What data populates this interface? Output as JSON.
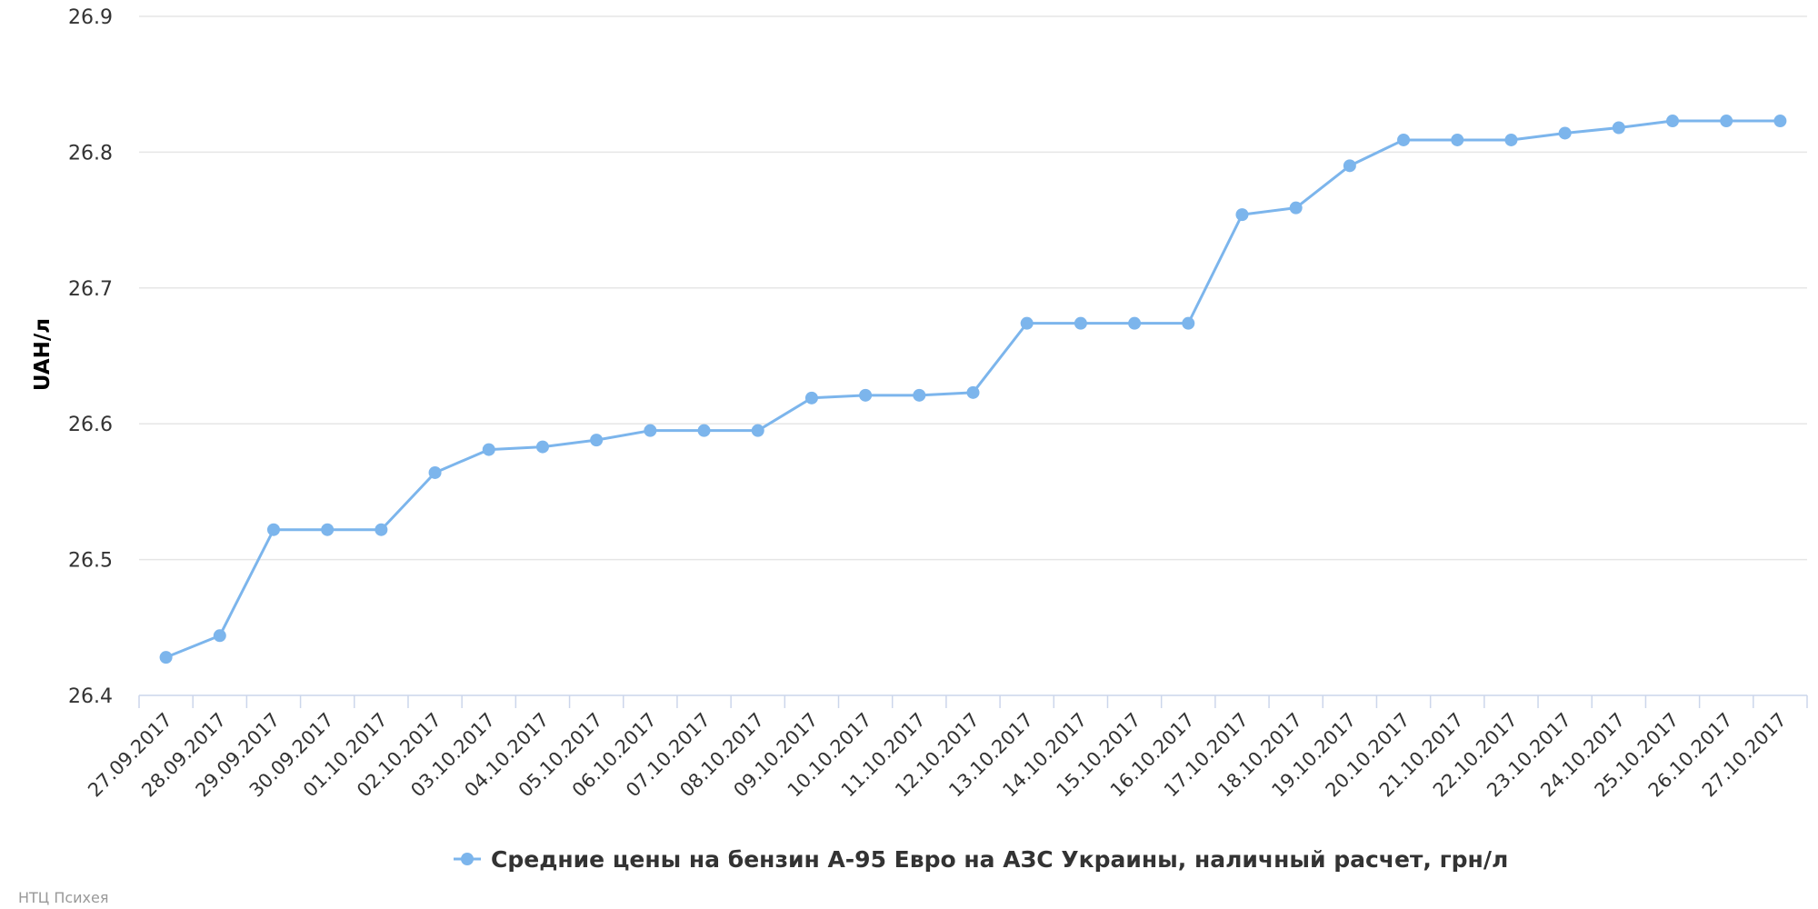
{
  "chart_data": {
    "type": "line",
    "ylabel": "UAH/л",
    "ylim": [
      26.4,
      26.9
    ],
    "yticks": [
      "26.4",
      "26.5",
      "26.6",
      "26.7",
      "26.8",
      "26.9"
    ],
    "grid": true,
    "legend_position": "bottom-center",
    "colors": {
      "series": "#7cb5ec",
      "grid": "#e6e6e6",
      "axis": "#ccd6eb"
    },
    "categories": [
      "27.09.2017",
      "28.09.2017",
      "29.09.2017",
      "30.09.2017",
      "01.10.2017",
      "02.10.2017",
      "03.10.2017",
      "04.10.2017",
      "05.10.2017",
      "06.10.2017",
      "07.10.2017",
      "08.10.2017",
      "09.10.2017",
      "10.10.2017",
      "11.10.2017",
      "12.10.2017",
      "13.10.2017",
      "14.10.2017",
      "15.10.2017",
      "16.10.2017",
      "17.10.2017",
      "18.10.2017",
      "19.10.2017",
      "20.10.2017",
      "21.10.2017",
      "22.10.2017",
      "23.10.2017",
      "24.10.2017",
      "25.10.2017",
      "26.10.2017",
      "27.10.2017"
    ],
    "series": [
      {
        "name": "Средние цены на бензин А-95 Евро на АЗС Украины, наличный расчет, грн/л",
        "values": [
          26.428,
          26.444,
          26.522,
          26.522,
          26.522,
          26.564,
          26.581,
          26.583,
          26.588,
          26.595,
          26.595,
          26.595,
          26.619,
          26.621,
          26.621,
          26.623,
          26.674,
          26.674,
          26.674,
          26.674,
          26.754,
          26.759,
          26.79,
          26.809,
          26.809,
          26.809,
          26.814,
          26.818,
          26.823,
          26.823,
          26.823
        ]
      }
    ]
  },
  "credits": "НТЦ Психея"
}
